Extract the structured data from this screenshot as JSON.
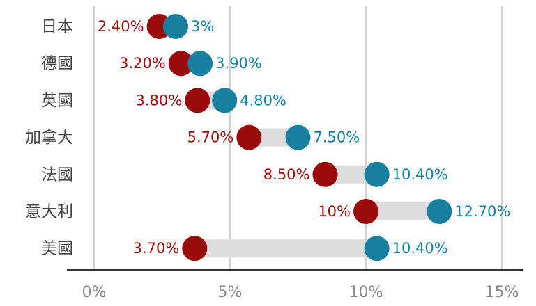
{
  "chart_data": {
    "type": "dumbbell",
    "categories": [
      "日本",
      "德國",
      "英國",
      "加拿大",
      "法國",
      "意大利",
      "美國"
    ],
    "series": [
      {
        "color": "#9b0a0a",
        "values": [
          2.4,
          3.2,
          3.8,
          5.7,
          8.5,
          10,
          3.7
        ],
        "value_labels": [
          "2.40%",
          "3.20%",
          "3.80%",
          "5.70%",
          "8.50%",
          "10%",
          "3.70%"
        ]
      },
      {
        "color": "#17809f",
        "values": [
          3,
          3.9,
          4.8,
          7.5,
          10.4,
          12.7,
          10.4
        ],
        "value_labels": [
          "3%",
          "3.90%",
          "4.80%",
          "7.50%",
          "10.40%",
          "12.70%",
          "10.40%"
        ]
      }
    ],
    "xlim": [
      -1,
      15.8
    ],
    "xticks": [
      {
        "value": 0,
        "label": "0%"
      },
      {
        "value": 5,
        "label": "5%"
      },
      {
        "value": 10,
        "label": "10%"
      },
      {
        "value": 15,
        "label": "15%"
      }
    ],
    "grid": true
  }
}
